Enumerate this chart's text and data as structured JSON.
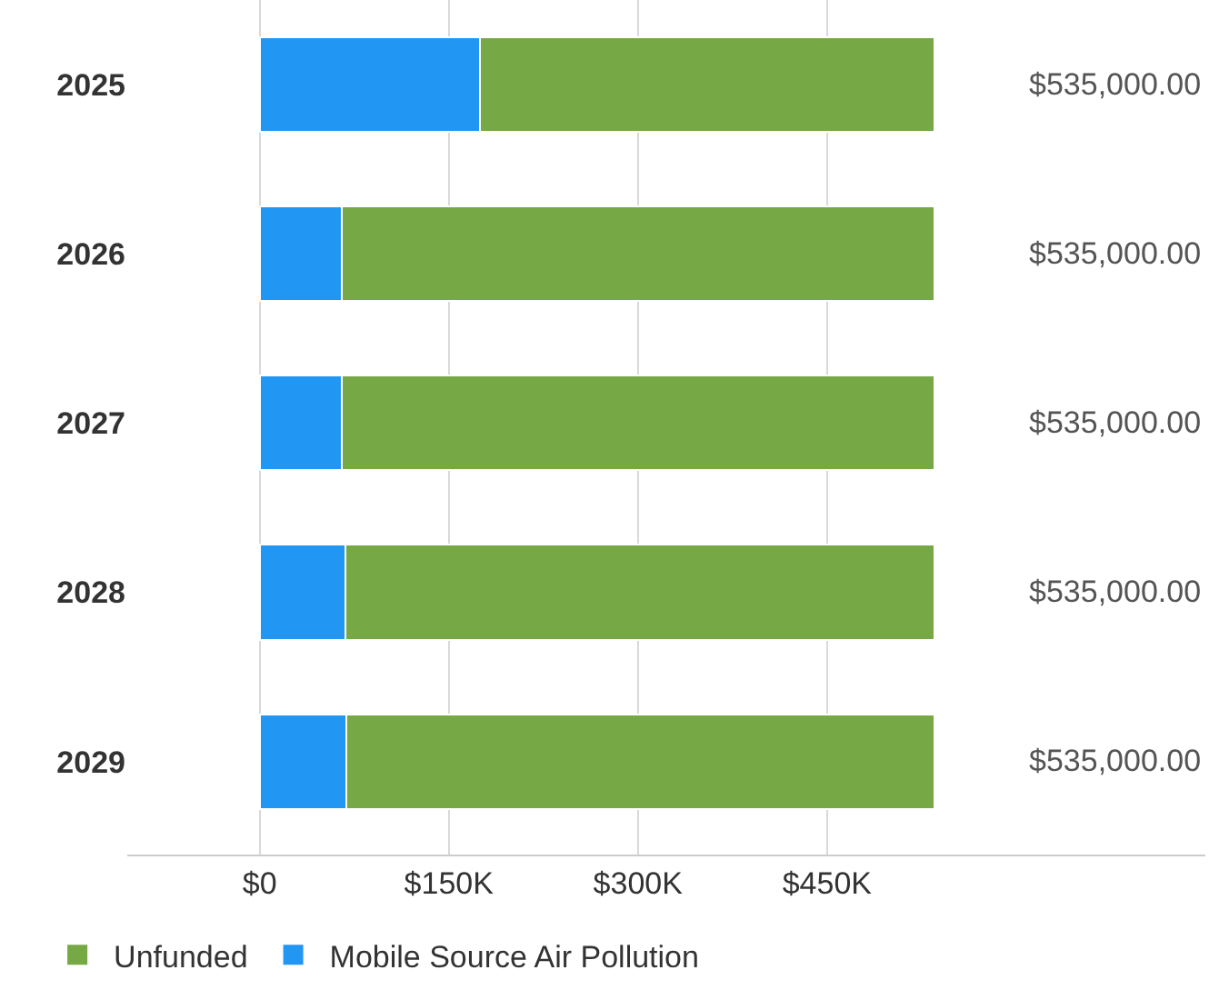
{
  "chart_data": {
    "type": "bar",
    "orientation": "horizontal",
    "stacked": true,
    "categories": [
      "2025",
      "2026",
      "2027",
      "2028",
      "2029"
    ],
    "series": [
      {
        "name": "Mobile Source Air Pollution",
        "color": "#2196f3",
        "values": [
          175000,
          65000,
          65000,
          68000,
          69000
        ]
      },
      {
        "name": "Unfunded",
        "color": "#76a846",
        "values": [
          360000,
          470000,
          470000,
          467000,
          466000
        ]
      }
    ],
    "totals": [
      "$535,000.00",
      "$535,000.00",
      "$535,000.00",
      "$535,000.00",
      "$535,000.00"
    ],
    "xlim": [
      -105000,
      750000
    ],
    "xticks": [
      {
        "value": 0,
        "label": "$0"
      },
      {
        "value": 150000,
        "label": "$150K"
      },
      {
        "value": 300000,
        "label": "$300K"
      },
      {
        "value": 450000,
        "label": "$450K"
      }
    ],
    "grid": "x",
    "legend": "bottom"
  }
}
